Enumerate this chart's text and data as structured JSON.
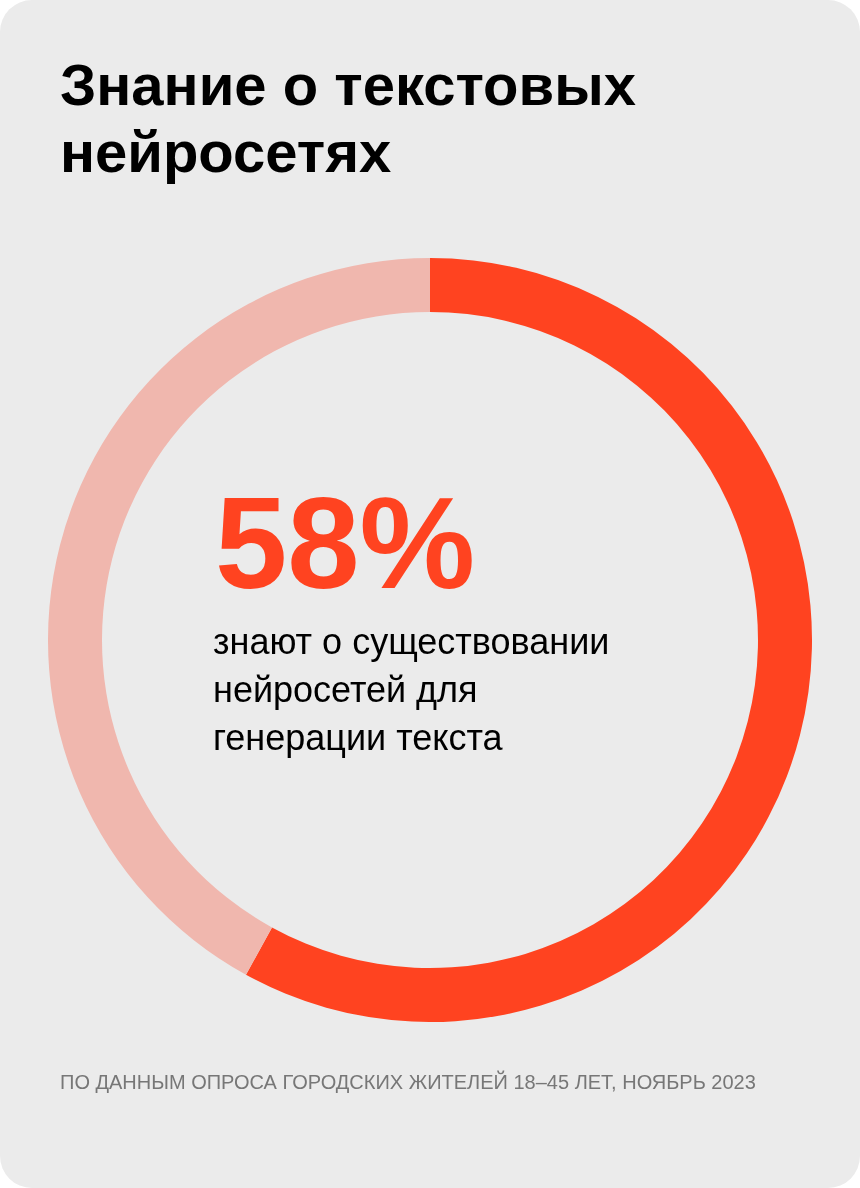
{
  "chart_data": {
    "type": "donut",
    "title": "Знание о текстовых нейросетях",
    "categories": [
      "знают о существовании нейросетей для генерации текста",
      null
    ],
    "values": [
      58,
      42
    ],
    "colors": [
      "#ff4320",
      "#f0b7ae"
    ],
    "value_labels": [
      "58%",
      null
    ],
    "annotations": [
      "ПО ДАННЫМ ОПРОСА ГОРОДСКИХ ЖИТЕЛЕЙ 18–45 ЛЕТ, НОЯБРЬ 2023"
    ]
  }
}
